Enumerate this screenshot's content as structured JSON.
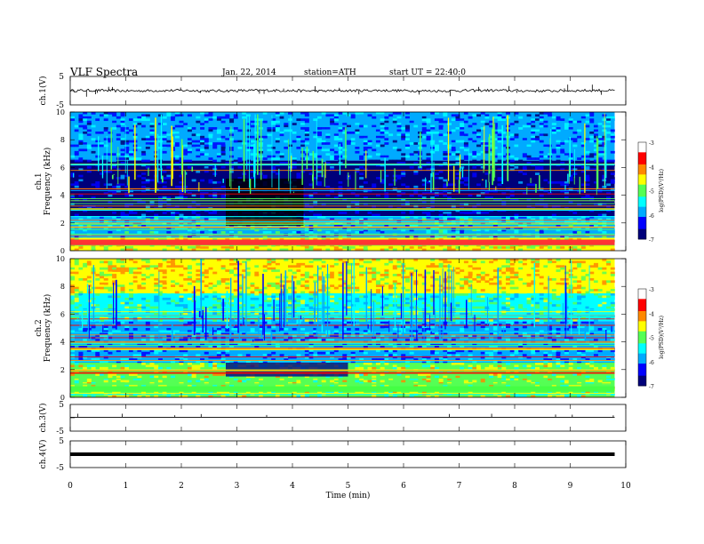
{
  "header": {
    "title": "VLF Spectra",
    "date": "Jan. 22, 2014",
    "station": "station=ATH",
    "start": "start UT = 22:40:0"
  },
  "colors": {
    "cmap": [
      "#00007a",
      "#0000ff",
      "#00aaff",
      "#00ffff",
      "#55ff55",
      "#ffff00",
      "#ff8800",
      "#ff0000",
      "#ffffff"
    ]
  },
  "chart_data": [
    {
      "type": "line",
      "panel": "ch1",
      "ylabel": "ch.1(V)",
      "ylim": [
        -5,
        5
      ],
      "yticks": [
        "5",
        "-5"
      ],
      "xlim": [
        0,
        10
      ],
      "x": [
        0.0,
        0.5,
        1.0,
        1.5,
        2.0,
        2.5,
        3.0,
        3.5,
        4.0,
        4.5,
        5.0,
        5.5,
        6.0,
        6.5,
        7.0,
        7.5,
        8.0,
        8.5,
        9.0,
        9.5,
        9.8
      ],
      "y": [
        0.0,
        0.1,
        -0.1,
        0.0,
        0.1,
        -0.1,
        0.0,
        0.1,
        0.0,
        -0.1,
        0.0,
        0.1,
        0.0,
        -0.1,
        0.0,
        0.1,
        0.0,
        -0.1,
        0.0,
        0.1,
        0.0
      ]
    },
    {
      "type": "heatmap",
      "panel": "ch1",
      "ylabel": "ch.1\nFrequency (kHz)",
      "ylim": [
        0,
        10
      ],
      "yticks": [
        "0",
        "2",
        "4",
        "6",
        "8",
        "10"
      ],
      "xlim": [
        0,
        10
      ],
      "data_xrange": [
        0,
        9.8
      ],
      "colorbar": {
        "label": "log(PSD)(V²/Hz)",
        "range": [
          -7,
          -3
        ],
        "ticks": [
          "-3",
          "-4",
          "-5",
          "-6",
          "-7"
        ]
      },
      "bands": [
        {
          "f_from": 0,
          "f_to": 0.9,
          "level": -4.2
        },
        {
          "f_from": 0.9,
          "f_to": 2.5,
          "level": -5.6
        },
        {
          "f_from": 2.5,
          "f_to": 6.5,
          "level": -6.6
        },
        {
          "f_from": 6.5,
          "f_to": 10,
          "level": -5.9
        }
      ],
      "quiet_segments": [
        {
          "t_from": 2.8,
          "t_to": 4.2,
          "f_from": 1.8,
          "f_to": 5.2
        }
      ]
    },
    {
      "type": "heatmap",
      "panel": "ch2",
      "ylabel": "ch.2\nFrequency (kHz)",
      "ylim": [
        0,
        10
      ],
      "yticks": [
        "0",
        "2",
        "4",
        "6",
        "8",
        "10"
      ],
      "xlim": [
        0,
        10
      ],
      "data_xrange": [
        0,
        9.8
      ],
      "colorbar": {
        "label": "log(PSD)(V²/Hz)",
        "range": [
          -7,
          -3
        ],
        "ticks": [
          "-3",
          "-4",
          "-5",
          "-6",
          "-7"
        ]
      },
      "bands": [
        {
          "f_from": 0,
          "f_to": 2.5,
          "level": -4.6
        },
        {
          "f_from": 2.5,
          "f_to": 5.5,
          "level": -5.8
        },
        {
          "f_from": 5.5,
          "f_to": 7.5,
          "level": -5.1
        },
        {
          "f_from": 7.5,
          "f_to": 10,
          "level": -4.2
        }
      ],
      "quiet_segments": [
        {
          "t_from": 2.8,
          "t_to": 5.0,
          "f_from": 1.5,
          "f_to": 2.5
        }
      ]
    },
    {
      "type": "line",
      "panel": "ch3",
      "ylabel": "ch.3(V)",
      "ylim": [
        -5,
        5
      ],
      "yticks": [
        "5",
        "-5"
      ],
      "xlim": [
        0,
        10
      ],
      "x": [
        0.0,
        1.0,
        2.0,
        3.0,
        4.0,
        5.0,
        6.0,
        7.0,
        8.0,
        9.0,
        9.8
      ],
      "y": [
        0.2,
        0.2,
        0.2,
        0.2,
        0.2,
        0.2,
        0.2,
        0.2,
        0.2,
        0.2,
        0.2
      ]
    },
    {
      "type": "line",
      "panel": "ch4",
      "ylabel": "ch.4(V)",
      "ylim": [
        -5,
        5
      ],
      "yticks": [
        "5",
        "-5"
      ],
      "xlim": [
        0,
        10
      ],
      "xlabel": "Time (min)",
      "xticks": [
        "0",
        "1",
        "2",
        "3",
        "4",
        "5",
        "6",
        "7",
        "8",
        "9",
        "10"
      ],
      "x": [
        0.0,
        9.8
      ],
      "y": [
        0.0,
        0.0
      ]
    }
  ]
}
